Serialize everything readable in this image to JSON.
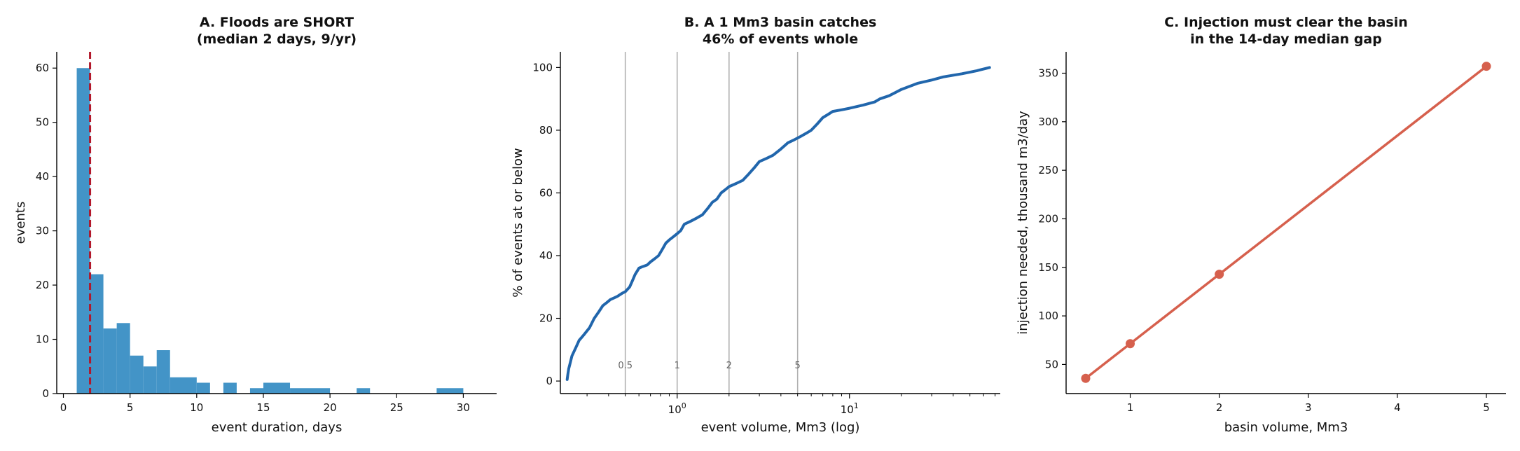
{
  "chart_data": [
    {
      "type": "bar",
      "title_lines": [
        "A. Floods are SHORT",
        "(median 2 days, 9/yr)"
      ],
      "xlabel": "event duration, days",
      "ylabel": "events",
      "xlim": [
        -0.5,
        32.5
      ],
      "ylim": [
        0,
        63
      ],
      "xticks": [
        0,
        5,
        10,
        15,
        20,
        25,
        30
      ],
      "yticks": [
        0,
        10,
        20,
        30,
        40,
        50,
        60
      ],
      "bar_color": "#4394c7",
      "median_line": {
        "x": 2,
        "color": "#b2182b"
      },
      "bins": [
        {
          "x0": 1.0,
          "x1": 2.0,
          "value": 60
        },
        {
          "x0": 2.0,
          "x1": 3.0,
          "value": 22
        },
        {
          "x0": 3.0,
          "x1": 4.0,
          "value": 12
        },
        {
          "x0": 4.0,
          "x1": 5.0,
          "value": 13
        },
        {
          "x0": 5.0,
          "x1": 6.0,
          "value": 7
        },
        {
          "x0": 6.0,
          "x1": 7.0,
          "value": 5
        },
        {
          "x0": 7.0,
          "x1": 8.0,
          "value": 8
        },
        {
          "x0": 8.0,
          "x1": 10.0,
          "value": 3
        },
        {
          "x0": 10.0,
          "x1": 11.0,
          "value": 2
        },
        {
          "x0": 12.0,
          "x1": 13.0,
          "value": 2
        },
        {
          "x0": 14.0,
          "x1": 15.0,
          "value": 1
        },
        {
          "x0": 15.0,
          "x1": 17.0,
          "value": 2
        },
        {
          "x0": 17.0,
          "x1": 20.0,
          "value": 1
        },
        {
          "x0": 22.0,
          "x1": 23.0,
          "value": 1
        },
        {
          "x0": 28.0,
          "x1": 30.0,
          "value": 1
        }
      ]
    },
    {
      "type": "line",
      "title_lines": [
        "B. A 1 Mm3 basin catches",
        "46% of events whole"
      ],
      "xlabel": "event volume, Mm3 (log)",
      "ylabel": "% of events at or below",
      "xscale": "log",
      "xlim": [
        0.21,
        75
      ],
      "ylim": [
        -4,
        105
      ],
      "xticks": [
        {
          "value": 1,
          "label": "10^0"
        },
        {
          "value": 10,
          "label": "10^1"
        }
      ],
      "yticks": [
        0,
        20,
        40,
        60,
        80,
        100
      ],
      "line_color": "#2166ac",
      "reference_lines": [
        {
          "x": 0.5,
          "label": "0.5"
        },
        {
          "x": 1,
          "label": "1"
        },
        {
          "x": 2,
          "label": "2"
        },
        {
          "x": 5,
          "label": "5"
        }
      ],
      "x": [
        0.23,
        0.232,
        0.235,
        0.24,
        0.245,
        0.25,
        0.26,
        0.27,
        0.28,
        0.29,
        0.31,
        0.33,
        0.35,
        0.37,
        0.39,
        0.41,
        0.43,
        0.45,
        0.48,
        0.5,
        0.53,
        0.55,
        0.57,
        0.6,
        0.63,
        0.67,
        0.7,
        0.74,
        0.78,
        0.82,
        0.86,
        0.9,
        0.95,
        1.0,
        1.05,
        1.1,
        1.2,
        1.3,
        1.4,
        1.5,
        1.6,
        1.7,
        1.8,
        1.9,
        2.0,
        2.2,
        2.4,
        2.6,
        2.8,
        3.0,
        3.3,
        3.6,
        4.0,
        4.4,
        4.8,
        5.2,
        5.6,
        6.0,
        6.5,
        7.0,
        7.5,
        8.0,
        9.0,
        10.0,
        12.0,
        14.0,
        15.0,
        17.0,
        20.0,
        25.0,
        30.0,
        35.0,
        45.0,
        55.0,
        65.0
      ],
      "y": [
        0.5,
        2,
        4,
        6,
        8,
        9,
        11,
        13,
        14,
        15,
        17,
        20,
        22,
        24,
        25,
        26,
        26.5,
        27,
        28,
        28.5,
        30,
        32,
        34,
        36,
        36.5,
        37,
        38,
        39,
        40,
        42,
        44,
        45,
        46,
        47,
        48,
        50,
        51,
        52,
        53,
        55,
        57,
        58,
        60,
        61,
        62,
        63,
        64,
        66,
        68,
        70,
        71,
        72,
        74,
        76,
        77,
        78,
        79,
        80,
        82,
        84,
        85,
        86,
        86.5,
        87,
        88,
        89,
        90,
        91,
        93,
        95,
        96,
        97,
        98,
        99,
        100
      ]
    },
    {
      "type": "line",
      "title_lines": [
        "C. Injection must clear the basin",
        "in the 14-day median gap"
      ],
      "xlabel": "basin volume, Mm3",
      "ylabel": "injection needed, thousand m3/day",
      "xlim": [
        0.28,
        5.22
      ],
      "ylim": [
        20,
        372
      ],
      "xticks": [
        1,
        2,
        3,
        4,
        5
      ],
      "yticks": [
        50,
        100,
        150,
        200,
        250,
        300,
        350
      ],
      "line_color": "#d6604d",
      "x": [
        0.5,
        1,
        2,
        5
      ],
      "y": [
        35.7,
        71.4,
        142.9,
        357.1
      ]
    }
  ]
}
